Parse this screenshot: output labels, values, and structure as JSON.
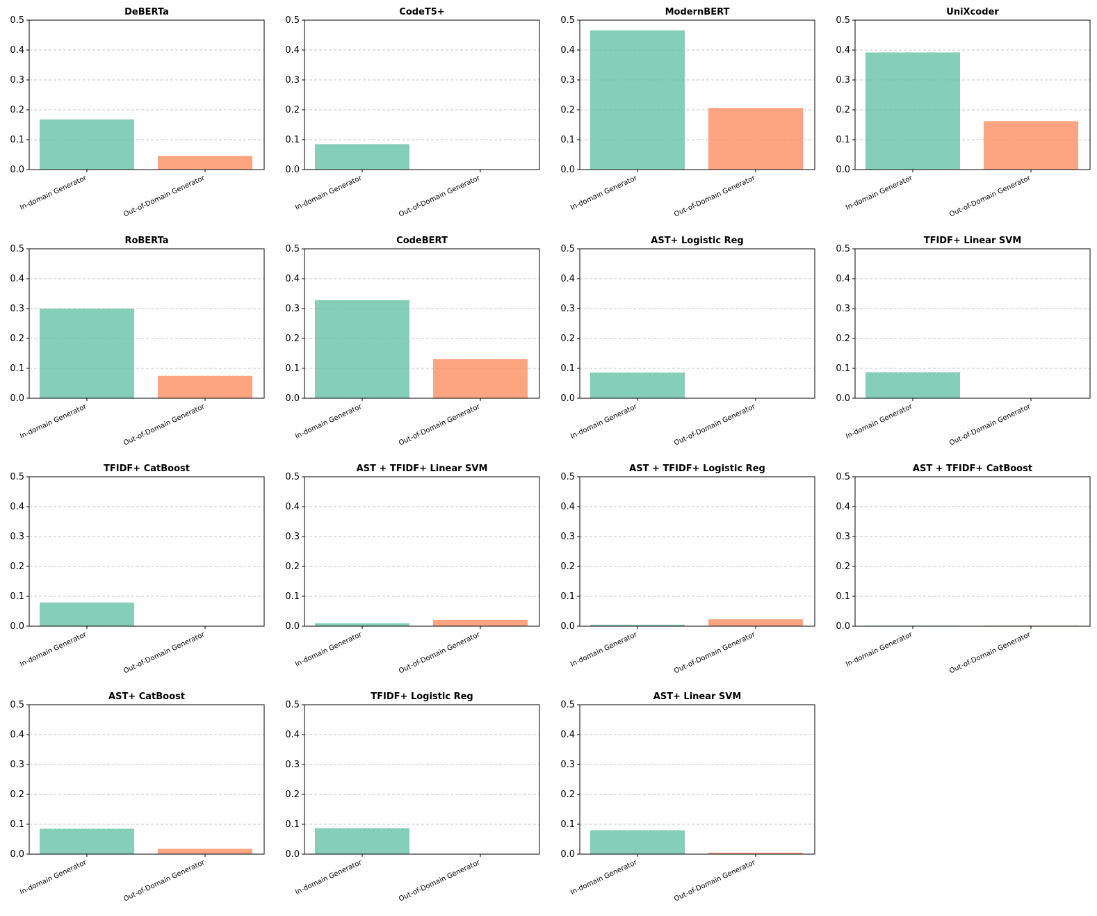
{
  "colors": {
    "in_domain": "#66c2a5",
    "out_of_domain": "#fc8d62",
    "grid": "#b0b0b0",
    "axis": "#000000"
  },
  "chart_data": [
    {
      "type": "bar",
      "title": "DeBERTa",
      "categories": [
        "In-domain Generator",
        "Out-of-Domain Generator"
      ],
      "values": [
        0.168,
        0.046
      ],
      "ylim": [
        0,
        0.5
      ],
      "yticks": [
        0.0,
        0.1,
        0.2,
        0.3,
        0.4,
        0.5
      ],
      "ytick_labels": [
        "0.0",
        "0.1",
        "0.2",
        "0.3",
        "0.4",
        "0.5"
      ],
      "grid": true
    },
    {
      "type": "bar",
      "title": "CodeT5+",
      "categories": [
        "In-domain Generator",
        "Out-of-Domain Generator"
      ],
      "values": [
        0.085,
        0.0
      ],
      "ylim": [
        0,
        0.5
      ],
      "yticks": [
        0.0,
        0.1,
        0.2,
        0.3,
        0.4,
        0.5
      ],
      "ytick_labels": [
        "0.0",
        "0.1",
        "0.2",
        "0.3",
        "0.4",
        "0.5"
      ],
      "grid": true
    },
    {
      "type": "bar",
      "title": "ModernBERT",
      "categories": [
        "In-domain Generator",
        "Out-of-Domain Generator"
      ],
      "values": [
        0.466,
        0.206
      ],
      "ylim": [
        0,
        0.5
      ],
      "yticks": [
        0.0,
        0.1,
        0.2,
        0.3,
        0.4,
        0.5
      ],
      "ytick_labels": [
        "0.0",
        "0.1",
        "0.2",
        "0.3",
        "0.4",
        "0.5"
      ],
      "grid": true
    },
    {
      "type": "bar",
      "title": "UniXcoder",
      "categories": [
        "In-domain Generator",
        "Out-of-Domain Generator"
      ],
      "values": [
        0.392,
        0.162
      ],
      "ylim": [
        0,
        0.5
      ],
      "yticks": [
        0.0,
        0.1,
        0.2,
        0.3,
        0.4,
        0.5
      ],
      "ytick_labels": [
        "0.0",
        "0.1",
        "0.2",
        "0.3",
        "0.4",
        "0.5"
      ],
      "grid": true
    },
    {
      "type": "bar",
      "title": "RoBERTa",
      "categories": [
        "In-domain Generator",
        "Out-of-Domain Generator"
      ],
      "values": [
        0.3,
        0.075
      ],
      "ylim": [
        0,
        0.5
      ],
      "yticks": [
        0.0,
        0.1,
        0.2,
        0.3,
        0.4,
        0.5
      ],
      "ytick_labels": [
        "0.0",
        "0.1",
        "0.2",
        "0.3",
        "0.4",
        "0.5"
      ],
      "grid": true
    },
    {
      "type": "bar",
      "title": "CodeBERT",
      "categories": [
        "In-domain Generator",
        "Out-of-Domain Generator"
      ],
      "values": [
        0.328,
        0.131
      ],
      "ylim": [
        0,
        0.5
      ],
      "yticks": [
        0.0,
        0.1,
        0.2,
        0.3,
        0.4,
        0.5
      ],
      "ytick_labels": [
        "0.0",
        "0.1",
        "0.2",
        "0.3",
        "0.4",
        "0.5"
      ],
      "grid": true
    },
    {
      "type": "bar",
      "title": "AST+ Logistic Reg",
      "categories": [
        "In-domain Generator",
        "Out-of-Domain Generator"
      ],
      "values": [
        0.086,
        0.0
      ],
      "ylim": [
        0,
        0.5
      ],
      "yticks": [
        0.0,
        0.1,
        0.2,
        0.3,
        0.4,
        0.5
      ],
      "ytick_labels": [
        "0.0",
        "0.1",
        "0.2",
        "0.3",
        "0.4",
        "0.5"
      ],
      "grid": true
    },
    {
      "type": "bar",
      "title": "TFIDF+ Linear SVM",
      "categories": [
        "In-domain Generator",
        "Out-of-Domain Generator"
      ],
      "values": [
        0.087,
        0.0
      ],
      "ylim": [
        0,
        0.5
      ],
      "yticks": [
        0.0,
        0.1,
        0.2,
        0.3,
        0.4,
        0.5
      ],
      "ytick_labels": [
        "0.0",
        "0.1",
        "0.2",
        "0.3",
        "0.4",
        "0.5"
      ],
      "grid": true
    },
    {
      "type": "bar",
      "title": "TFIDF+ CatBoost",
      "categories": [
        "In-domain Generator",
        "Out-of-Domain Generator"
      ],
      "values": [
        0.079,
        0.0
      ],
      "ylim": [
        0,
        0.5
      ],
      "yticks": [
        0.0,
        0.1,
        0.2,
        0.3,
        0.4,
        0.5
      ],
      "ytick_labels": [
        "0.0",
        "0.1",
        "0.2",
        "0.3",
        "0.4",
        "0.5"
      ],
      "grid": true
    },
    {
      "type": "bar",
      "title": "AST + TFIDF+ Linear SVM",
      "categories": [
        "In-domain Generator",
        "Out-of-Domain Generator"
      ],
      "values": [
        0.01,
        0.021
      ],
      "ylim": [
        0,
        0.5
      ],
      "yticks": [
        0.0,
        0.1,
        0.2,
        0.3,
        0.4,
        0.5
      ],
      "ytick_labels": [
        "0.0",
        "0.1",
        "0.2",
        "0.3",
        "0.4",
        "0.5"
      ],
      "grid": true
    },
    {
      "type": "bar",
      "title": "AST + TFIDF+ Logistic Reg",
      "categories": [
        "In-domain Generator",
        "Out-of-Domain Generator"
      ],
      "values": [
        0.005,
        0.023
      ],
      "ylim": [
        0,
        0.5
      ],
      "yticks": [
        0.0,
        0.1,
        0.2,
        0.3,
        0.4,
        0.5
      ],
      "ytick_labels": [
        "0.0",
        "0.1",
        "0.2",
        "0.3",
        "0.4",
        "0.5"
      ],
      "grid": true
    },
    {
      "type": "bar",
      "title": "AST + TFIDF+ CatBoost",
      "categories": [
        "In-domain Generator",
        "Out-of-Domain Generator"
      ],
      "values": [
        0.002,
        0.002
      ],
      "ylim": [
        0,
        0.5
      ],
      "yticks": [
        0.0,
        0.1,
        0.2,
        0.3,
        0.4,
        0.5
      ],
      "ytick_labels": [
        "0.0",
        "0.1",
        "0.2",
        "0.3",
        "0.4",
        "0.5"
      ],
      "grid": true
    },
    {
      "type": "bar",
      "title": "AST+ CatBoost",
      "categories": [
        "In-domain Generator",
        "Out-of-Domain Generator"
      ],
      "values": [
        0.085,
        0.018
      ],
      "ylim": [
        0,
        0.5
      ],
      "yticks": [
        0.0,
        0.1,
        0.2,
        0.3,
        0.4,
        0.5
      ],
      "ytick_labels": [
        "0.0",
        "0.1",
        "0.2",
        "0.3",
        "0.4",
        "0.5"
      ],
      "grid": true
    },
    {
      "type": "bar",
      "title": "TFIDF+ Logistic Reg",
      "categories": [
        "In-domain Generator",
        "Out-of-Domain Generator"
      ],
      "values": [
        0.087,
        0.0
      ],
      "ylim": [
        0,
        0.5
      ],
      "yticks": [
        0.0,
        0.1,
        0.2,
        0.3,
        0.4,
        0.5
      ],
      "ytick_labels": [
        "0.0",
        "0.1",
        "0.2",
        "0.3",
        "0.4",
        "0.5"
      ],
      "grid": true
    },
    {
      "type": "bar",
      "title": "AST+ Linear SVM",
      "categories": [
        "In-domain Generator",
        "Out-of-Domain Generator"
      ],
      "values": [
        0.08,
        0.005
      ],
      "ylim": [
        0,
        0.5
      ],
      "yticks": [
        0.0,
        0.1,
        0.2,
        0.3,
        0.4,
        0.5
      ],
      "ytick_labels": [
        "0.0",
        "0.1",
        "0.2",
        "0.3",
        "0.4",
        "0.5"
      ],
      "grid": true
    }
  ]
}
